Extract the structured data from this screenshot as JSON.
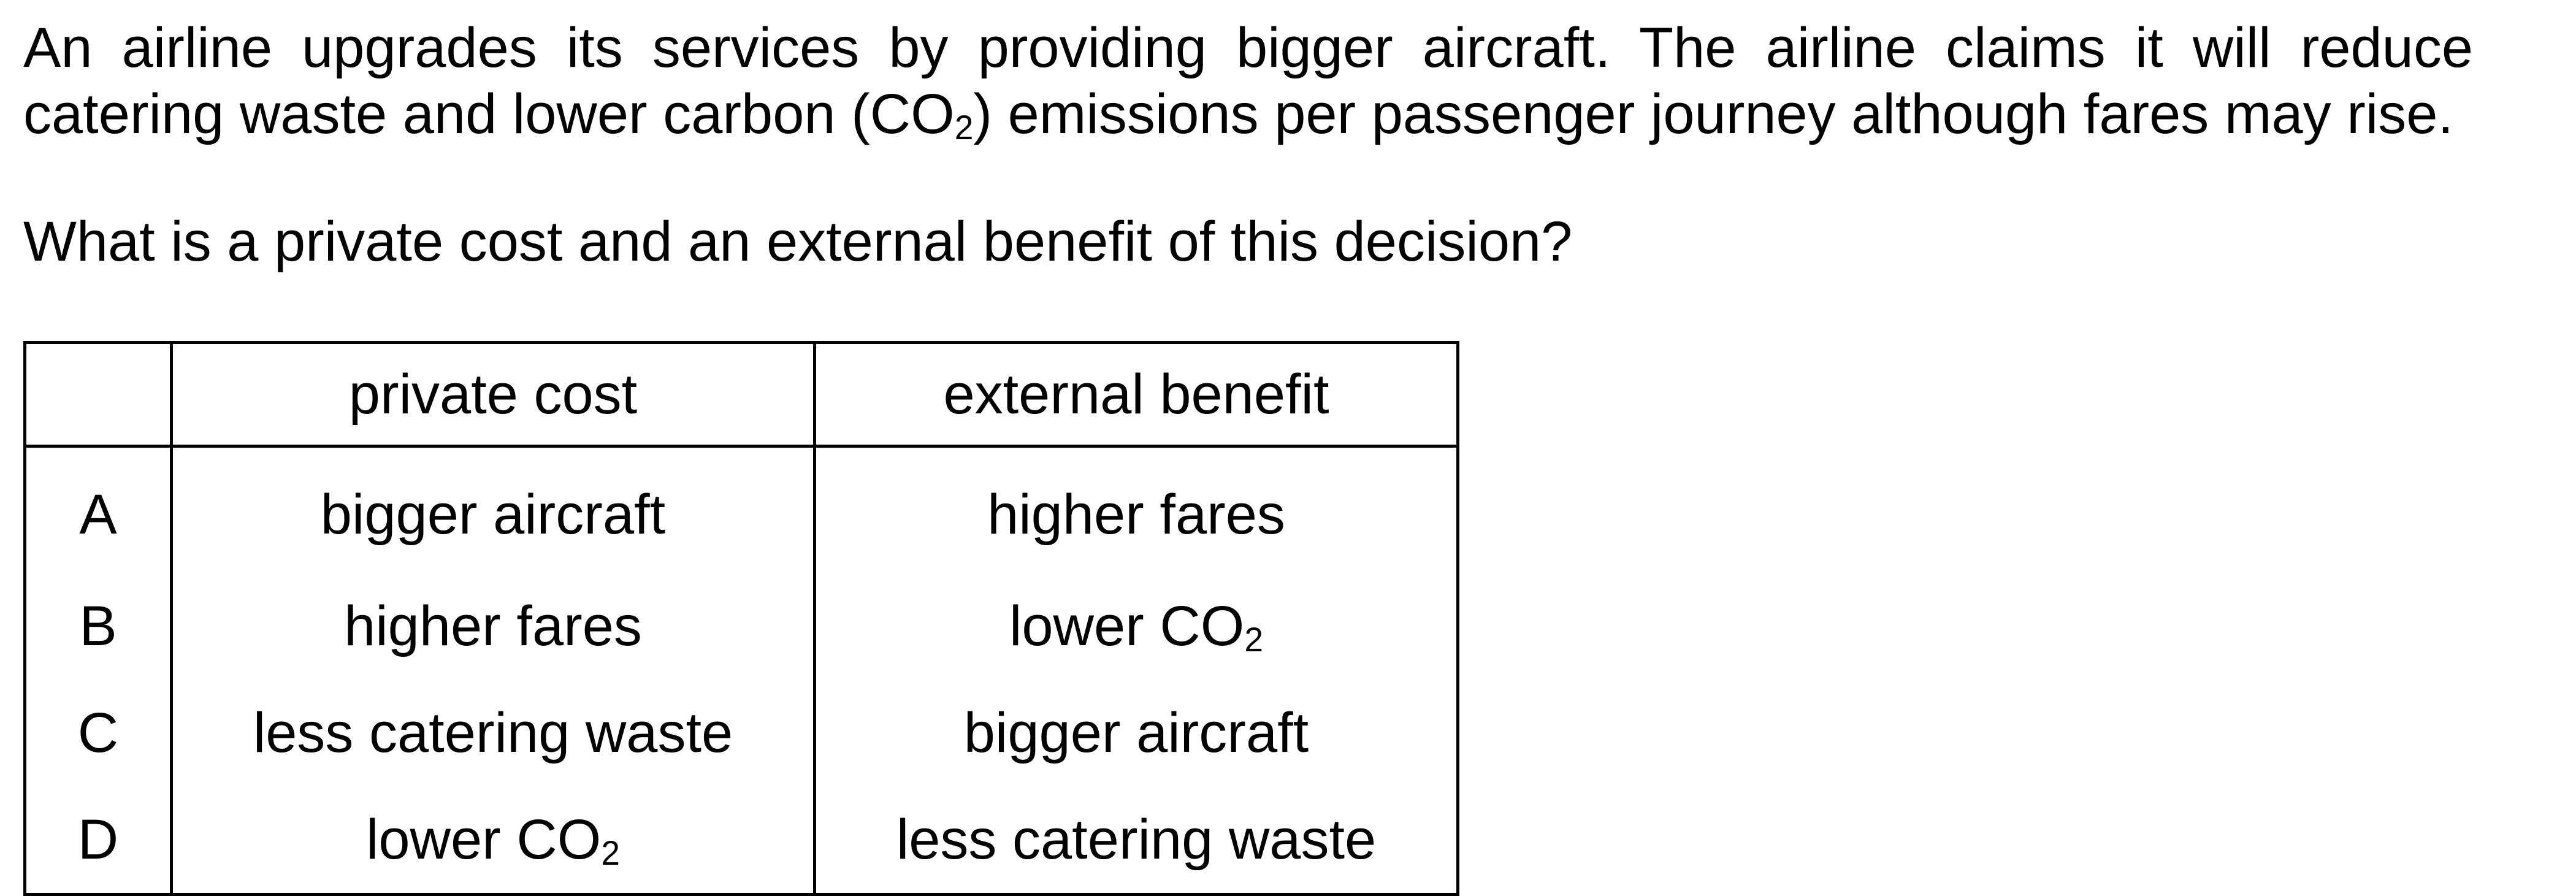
{
  "stem": {
    "line1": "An airline upgrades its services by providing bigger aircraft. The airline claims it will reduce",
    "line2_before": "catering waste and lower carbon (CO",
    "line2_sub": "2",
    "line2_after": ") emissions per passenger journey although fares may rise."
  },
  "question": "What is a private cost and an external benefit of this decision?",
  "table": {
    "headers": {
      "letter": "",
      "private_cost": "private cost",
      "external_benefit": "external benefit"
    },
    "rows": [
      {
        "letter": "A",
        "private_cost": "bigger aircraft",
        "external_benefit": "higher fares"
      },
      {
        "letter": "B",
        "private_cost": "higher fares",
        "external_benefit": "lower CO",
        "external_benefit_sub": "2"
      },
      {
        "letter": "C",
        "private_cost": "less catering waste",
        "external_benefit": "bigger aircraft"
      },
      {
        "letter": "D",
        "private_cost": "lower CO",
        "private_cost_sub": "2",
        "external_benefit": "less catering waste"
      }
    ]
  }
}
